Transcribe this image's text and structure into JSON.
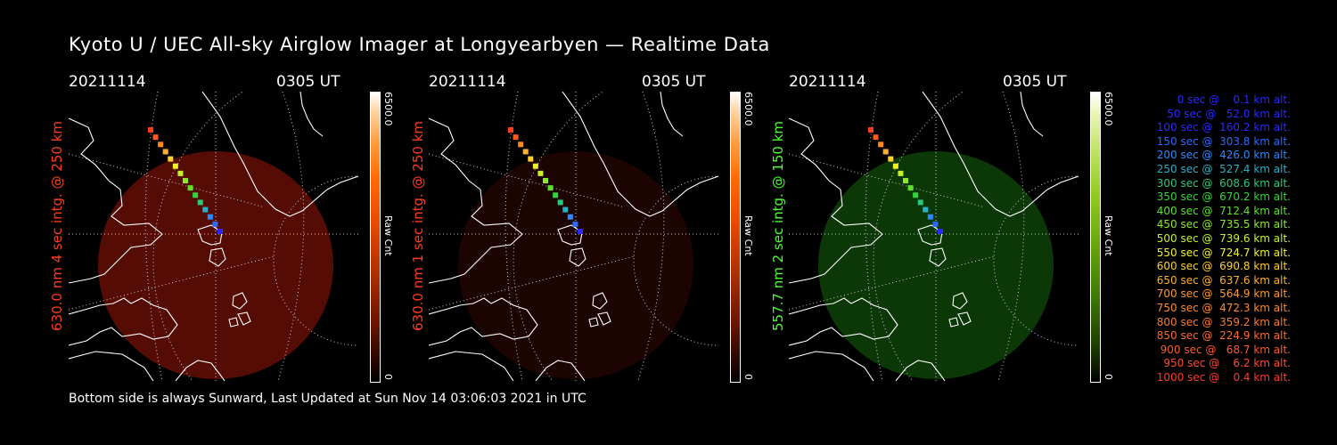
{
  "title": "Kyoto U / UEC All-sky Airglow Imager at Longyearbyen — Realtime Data",
  "footer": "Bottom side is always Sunward, Last Updated at Sun Nov 14 03:06:03 2021 in UTC",
  "colors": {
    "red_label": "#ff3b1f",
    "green_label": "#4cff33"
  },
  "panels": [
    {
      "date": "20211114",
      "time": "0305 UT",
      "label": "630.0 nm  4 sec intg. @ 250 km",
      "label_color": "#ff3b1f",
      "cbar_max": "6500.0",
      "cbar_unit": "Raw Cnt",
      "cbar_min": "0",
      "sky_color": "#5a0d05",
      "sky_brightness": "moderate"
    },
    {
      "date": "20211114",
      "time": "0305 UT",
      "label": "630.0 nm  1 sec intg. @ 250 km",
      "label_color": "#ff3b1f",
      "cbar_max": "6500.0",
      "cbar_unit": "Raw Cnt",
      "cbar_min": "0",
      "sky_color": "#1c0402",
      "sky_brightness": "dim"
    },
    {
      "date": "20211114",
      "time": "0305 UT",
      "label": "557.7 nm  2 sec intg. @ 150 km",
      "label_color": "#4cff33",
      "cbar_max": "6500.0",
      "cbar_unit": "Raw Cnt",
      "cbar_min": "0",
      "sky_color": "#0d3a06",
      "sky_brightness": "moderate"
    }
  ],
  "legend": [
    {
      "text": "   0 sec @    0.1 km alt.",
      "color": "#2a2aff"
    },
    {
      "text": "  50 sec @   52.0 km alt.",
      "color": "#2a2aff"
    },
    {
      "text": " 100 sec @  160.2 km alt.",
      "color": "#2a2aff"
    },
    {
      "text": " 150 sec @  303.8 km alt.",
      "color": "#2a6aff"
    },
    {
      "text": " 200 sec @  426.0 km alt.",
      "color": "#2a8aff"
    },
    {
      "text": " 250 sec @  527.4 km alt.",
      "color": "#2ab0c8"
    },
    {
      "text": " 300 sec @  608.6 km alt.",
      "color": "#2ac87a"
    },
    {
      "text": " 350 sec @  670.2 km alt.",
      "color": "#33d63a"
    },
    {
      "text": " 400 sec @  712.4 km alt.",
      "color": "#5ce02a"
    },
    {
      "text": " 450 sec @  735.5 km alt.",
      "color": "#8ee82a"
    },
    {
      "text": " 500 sec @  739.6 km alt.",
      "color": "#c8f02a"
    },
    {
      "text": " 550 sec @  724.7 km alt.",
      "color": "#f0f02a"
    },
    {
      "text": " 600 sec @  690.8 km alt.",
      "color": "#ffd02a"
    },
    {
      "text": " 650 sec @  637.6 km alt.",
      "color": "#ffb02a"
    },
    {
      "text": " 700 sec @  564.9 km alt.",
      "color": "#ff9a2a"
    },
    {
      "text": " 750 sec @  472.3 km alt.",
      "color": "#ff8a2a"
    },
    {
      "text": " 800 sec @  359.2 km alt.",
      "color": "#ff7a2a"
    },
    {
      "text": " 850 sec @  224.9 km alt.",
      "color": "#ff6a2a"
    },
    {
      "text": " 900 sec @   68.7 km alt.",
      "color": "#ff5a2a"
    },
    {
      "text": " 950 sec @    6.2 km alt.",
      "color": "#ff4a2a"
    },
    {
      "text": "1000 sec @    0.4 km alt.",
      "color": "#ff3a2a"
    }
  ],
  "track_colors": [
    "#ff3b1f",
    "#ff5a1f",
    "#ff8a1f",
    "#ffb02a",
    "#ffd02a",
    "#f0f02a",
    "#c8f02a",
    "#8ee82a",
    "#5ce02a",
    "#33d63a",
    "#2ac87a",
    "#2ab0c8",
    "#2a8aff",
    "#2a6aff",
    "#2a2aff"
  ],
  "icons": {
    "coastline": "coastline-map-icon",
    "grid": "latlon-grid-icon"
  }
}
